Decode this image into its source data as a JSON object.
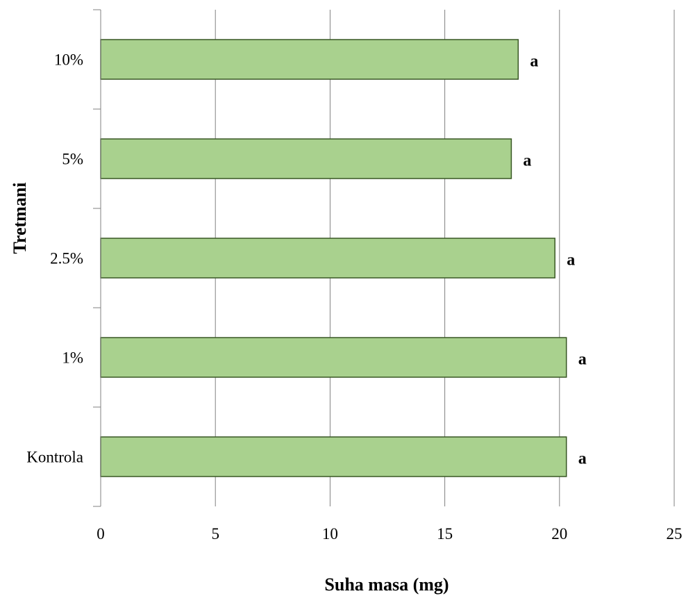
{
  "chart_data": {
    "type": "bar",
    "orientation": "horizontal",
    "categories": [
      "Kontrola",
      "1%",
      "2.5%",
      "5%",
      "10%"
    ],
    "values": [
      20.3,
      20.3,
      19.8,
      17.9,
      18.2
    ],
    "data_labels": [
      "a",
      "a",
      "a",
      "a",
      "a"
    ],
    "xlabel": "Suha masa (mg)",
    "ylabel": "Tretmani",
    "xlim": [
      0,
      25
    ],
    "x_ticks": [
      "0",
      "5",
      "10",
      "15",
      "20",
      "25"
    ],
    "grid": true,
    "legend": "none",
    "colors": {
      "bar_fill": "#a9d18e",
      "bar_stroke": "#385723",
      "grid": "#808080",
      "axis": "#808080"
    }
  }
}
